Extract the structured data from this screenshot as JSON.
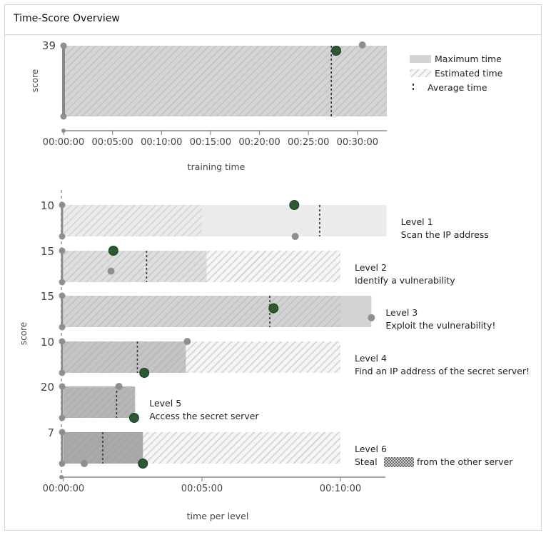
{
  "panel": {
    "title": "Time-Score Overview"
  },
  "colors": {
    "green": "#2a5934",
    "grey_marker": "#8f8f8f",
    "axis": "#8a8a8a",
    "shade_levels": [
      "#ebebeb",
      "#dedede",
      "#d2d2d2",
      "#c4c4c4",
      "#b6b6b6",
      "#a9a9a9"
    ],
    "max_fill": "#d4d4d4"
  },
  "chart_data": [
    {
      "type": "bar",
      "name": "training",
      "y_tick": "39",
      "ylabel": "score",
      "xlabel": "training time",
      "x_ticks": [
        "00:00:00",
        "00:05:00",
        "00:10:00",
        "00:15:00",
        "00:20:00",
        "00:25:00",
        "00:30:00"
      ],
      "x_tick_seconds": [
        0,
        300,
        600,
        900,
        1200,
        1500,
        1800
      ],
      "xlim_seconds": [
        0,
        1980
      ],
      "max_time_seconds": 1980,
      "estimated_time_seconds": 1980,
      "average_time_seconds": 1640,
      "player_time_seconds": 1670,
      "player_score": 39,
      "other_points": [
        {
          "time_seconds": 1830,
          "score": 39
        }
      ],
      "legend": [
        {
          "label": "Maximum time",
          "kind": "solid"
        },
        {
          "label": "Estimated time",
          "kind": "hatched"
        },
        {
          "label": "Average time",
          "kind": "dashed"
        }
      ]
    },
    {
      "type": "bar",
      "name": "levels",
      "ylabel": "score",
      "xlabel": "time per level",
      "x_ticks": [
        "00:00:00",
        "00:05:00",
        "00:10:00"
      ],
      "x_tick_seconds": [
        0,
        300,
        600
      ],
      "xlim_seconds": [
        0,
        700
      ],
      "levels": [
        {
          "title": "Level 1",
          "desc": "Scan the IP address",
          "max_score": "10",
          "max_time_seconds": 700,
          "estimated_time_seconds": 300,
          "average_time_seconds": 555,
          "player": {
            "time_seconds": 500,
            "score_fraction": 1.0
          },
          "other_points": [
            {
              "time_seconds": 502,
              "score_fraction": 0.0
            }
          ]
        },
        {
          "title": "Level 2",
          "desc": "Identify a vulnerability",
          "max_score": "15",
          "max_time_seconds": 310,
          "estimated_time_seconds": 600,
          "average_time_seconds": 180,
          "player": {
            "time_seconds": 108,
            "score_fraction": 1.0
          },
          "other_points": [
            {
              "time_seconds": 103,
              "score_fraction": 0.35
            }
          ]
        },
        {
          "title": "Level 3",
          "desc": "Exploit the vulnerability!",
          "max_score": "15",
          "max_time_seconds": 667,
          "estimated_time_seconds": 600,
          "average_time_seconds": 447,
          "player": {
            "time_seconds": 455,
            "score_fraction": 0.6
          },
          "other_points": [
            {
              "time_seconds": 667,
              "score_fraction": 0.3
            }
          ]
        },
        {
          "title": "Level 4",
          "desc": "Find an IP address of the secret server!",
          "max_score": "10",
          "max_time_seconds": 265,
          "estimated_time_seconds": 600,
          "average_time_seconds": 160,
          "player": {
            "time_seconds": 175,
            "score_fraction": 0.0
          },
          "other_points": [
            {
              "time_seconds": 268,
              "score_fraction": 1.0
            }
          ]
        },
        {
          "title": "Level 5",
          "desc": "Access the secret server",
          "max_score": "20",
          "max_time_seconds": 155,
          "estimated_time_seconds": 155,
          "average_time_seconds": 115,
          "player": {
            "time_seconds": 153,
            "score_fraction": 0.0
          },
          "other_points": [
            {
              "time_seconds": 120,
              "score_fraction": 1.0
            }
          ]
        },
        {
          "title": "Level 6",
          "desc_before": "Steal",
          "desc_after": "from the other server",
          "max_score": "7",
          "max_time_seconds": 172,
          "estimated_time_seconds": 600,
          "average_time_seconds": 85,
          "player": {
            "time_seconds": 172,
            "score_fraction": 0.0
          },
          "other_points": [
            {
              "time_seconds": 45,
              "score_fraction": 0.0
            }
          ]
        }
      ]
    }
  ]
}
